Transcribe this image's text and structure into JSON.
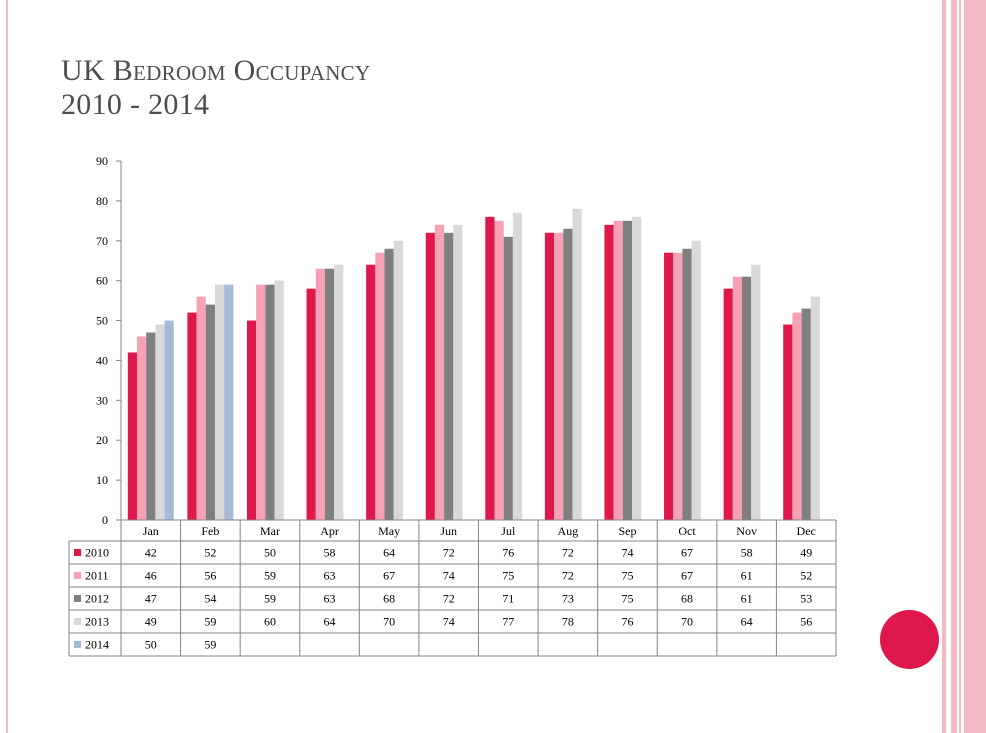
{
  "slide": {
    "title_line1": "UK Bedroom Occupancy",
    "title_line2": "2010 - 2014"
  },
  "colors": {
    "accent": "#e0174a",
    "stripe": "#f2b8c3"
  },
  "chart_data": {
    "type": "bar",
    "title": "",
    "xlabel": "",
    "ylabel": "",
    "ylim": [
      0,
      90
    ],
    "yticks": [
      0,
      10,
      20,
      30,
      40,
      50,
      60,
      70,
      80,
      90
    ],
    "grid": false,
    "legend": "data-table",
    "categories": [
      "Jan",
      "Feb",
      "Mar",
      "Apr",
      "May",
      "Jun",
      "Jul",
      "Aug",
      "Sep",
      "Oct",
      "Nov",
      "Dec"
    ],
    "series": [
      {
        "name": "2010",
        "color": "#e0174a",
        "values": [
          42,
          52,
          50,
          58,
          64,
          72,
          76,
          72,
          74,
          67,
          58,
          49
        ]
      },
      {
        "name": "2011",
        "color": "#f7a1b5",
        "values": [
          46,
          56,
          59,
          63,
          67,
          74,
          75,
          72,
          75,
          67,
          61,
          52
        ]
      },
      {
        "name": "2012",
        "color": "#7f7f7f",
        "values": [
          47,
          54,
          59,
          63,
          68,
          72,
          71,
          73,
          75,
          68,
          61,
          53
        ]
      },
      {
        "name": "2013",
        "color": "#d9d9d9",
        "values": [
          49,
          59,
          60,
          64,
          70,
          74,
          77,
          78,
          76,
          70,
          64,
          56
        ]
      },
      {
        "name": "2014",
        "color": "#a6b9d7",
        "values": [
          50,
          59,
          null,
          null,
          null,
          null,
          null,
          null,
          null,
          null,
          null,
          null
        ]
      }
    ]
  }
}
